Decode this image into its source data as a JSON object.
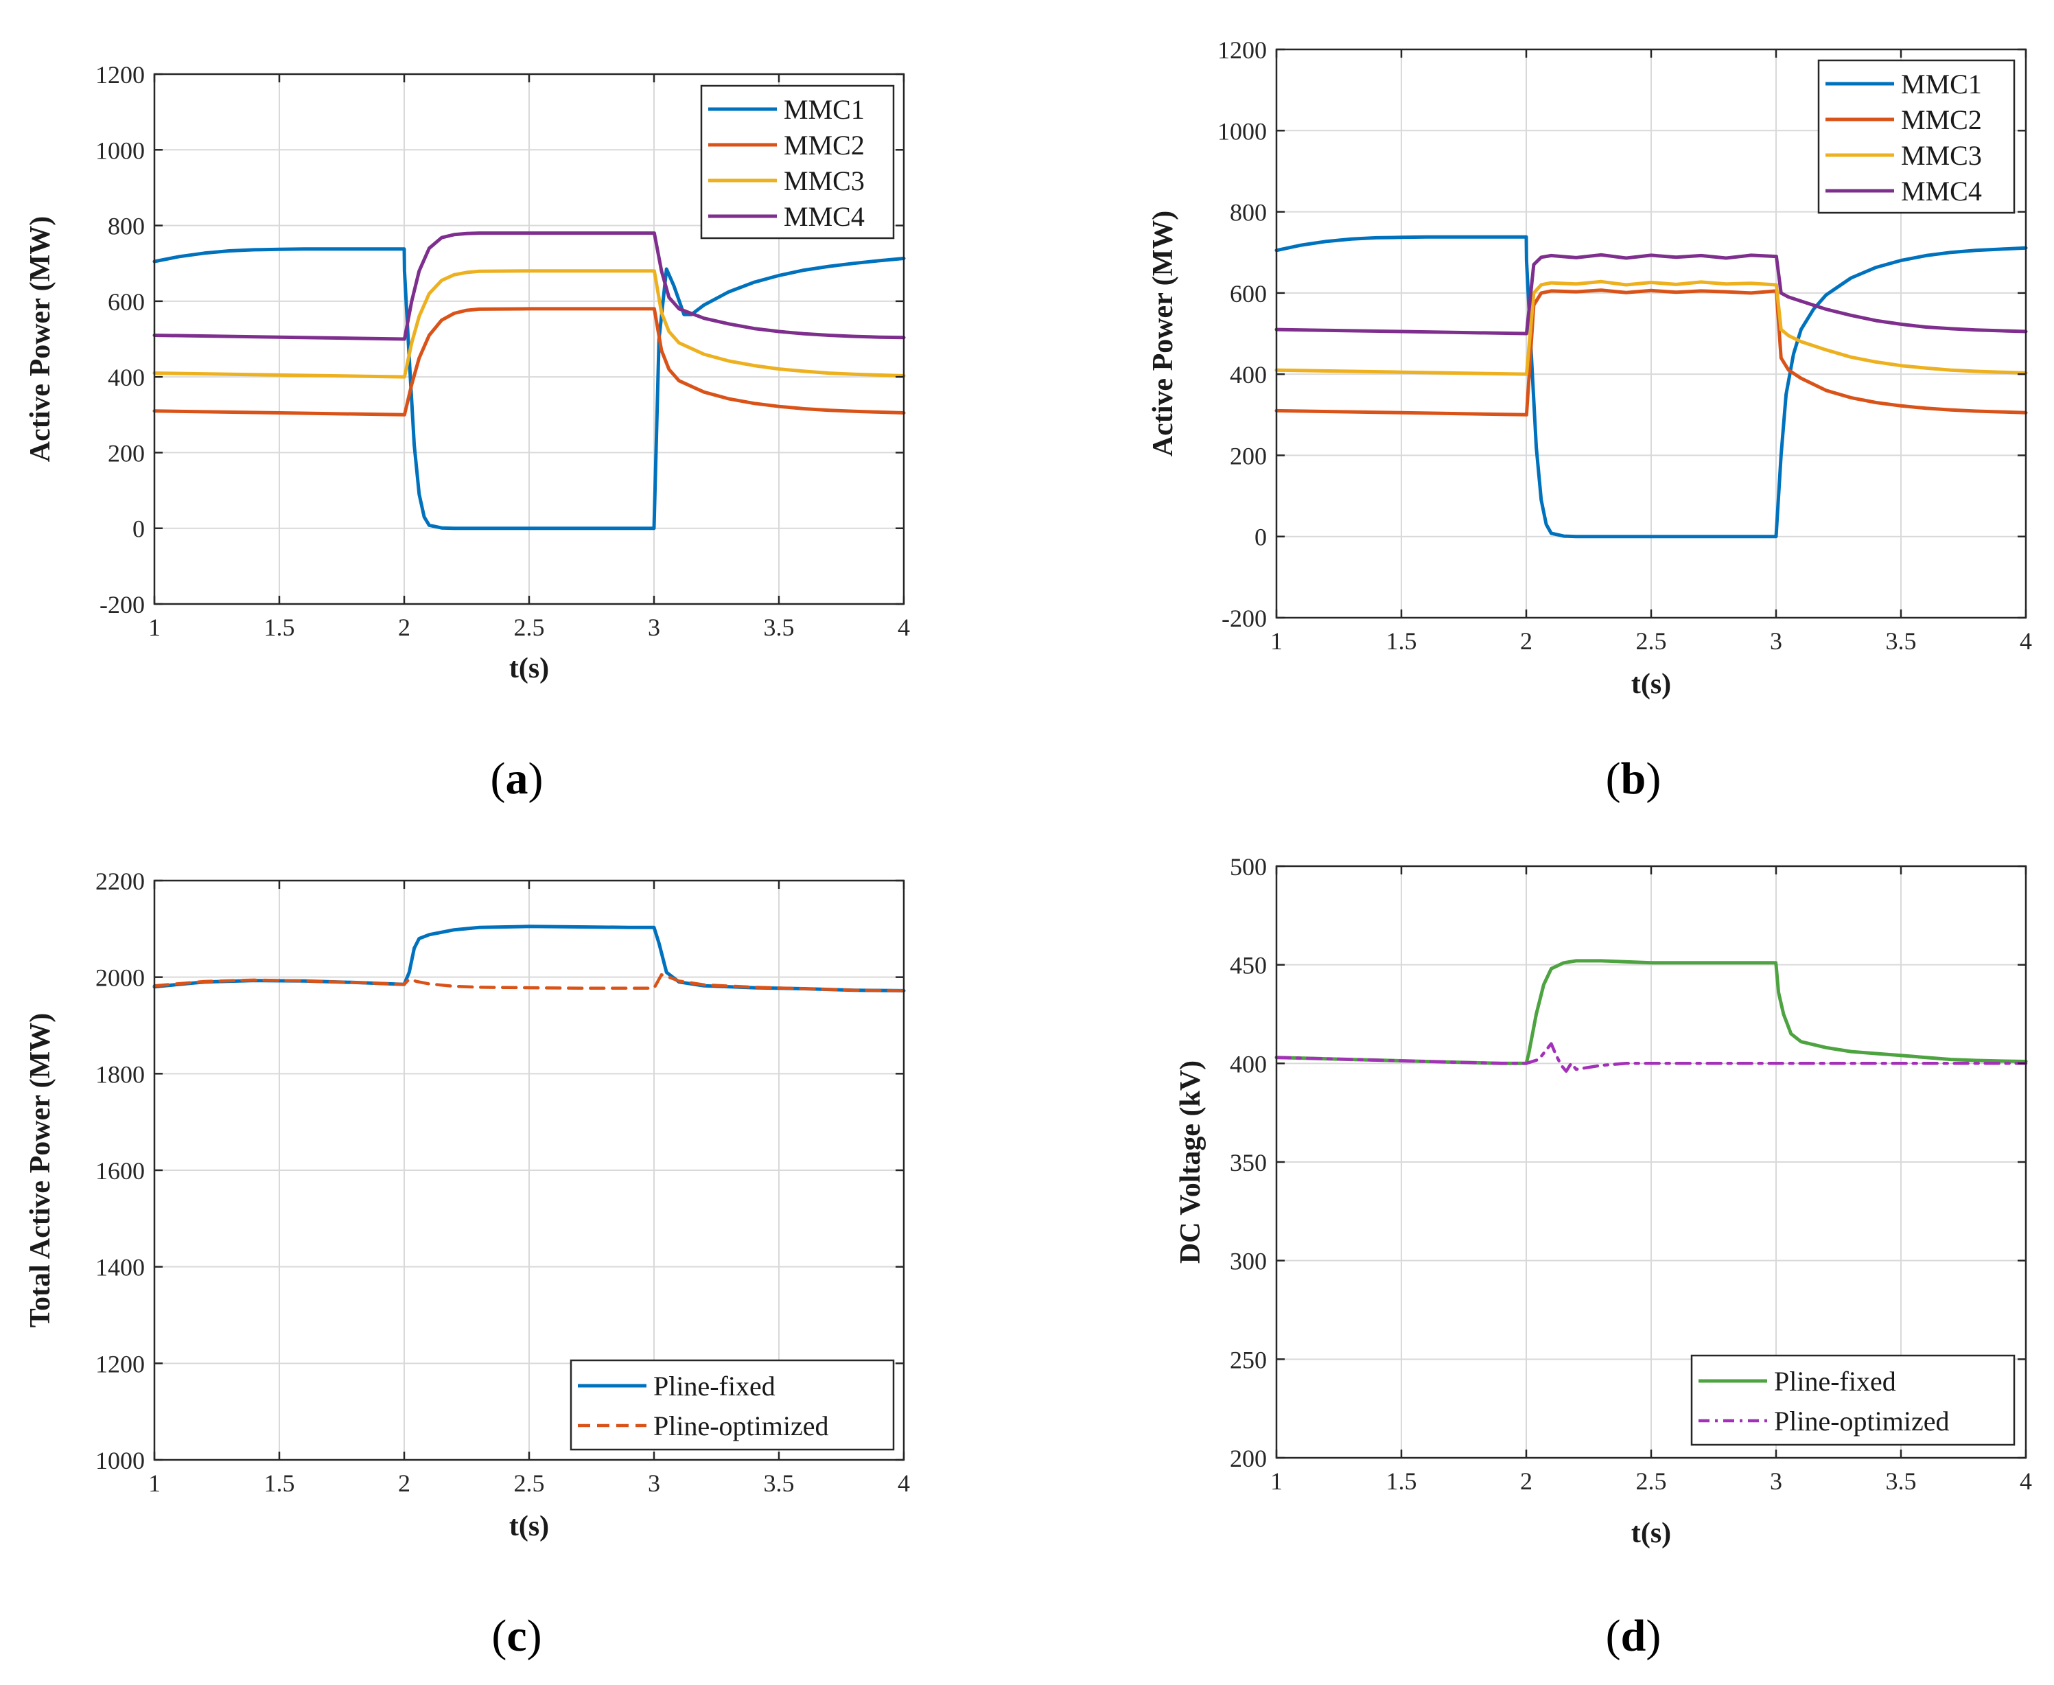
{
  "chart_data": [
    {
      "id": "a",
      "type": "line",
      "caption": "a",
      "xlabel": "t(s)",
      "ylabel": "Active Power (MW)",
      "xlim": [
        1,
        4
      ],
      "ylim": [
        -200,
        1200
      ],
      "xticks": [
        1,
        1.5,
        2,
        2.5,
        3,
        3.5,
        4
      ],
      "xtick_labels": [
        "1",
        "1.5",
        "2",
        "2.5",
        "3",
        "3.5",
        "4"
      ],
      "yticks": [
        -200,
        0,
        200,
        400,
        600,
        800,
        1000,
        1200
      ],
      "ytick_labels": [
        "-200",
        "0",
        "200",
        "400",
        "600",
        "800",
        "1000",
        "1200"
      ],
      "grid": true,
      "legend_position": "top-right",
      "series": [
        {
          "name": "MMC1",
          "color": "#0072BD",
          "style": "solid",
          "x": [
            1,
            1.1,
            1.2,
            1.3,
            1.4,
            1.5,
            1.6,
            1.7,
            1.8,
            1.9,
            2.0,
            2.001,
            2.02,
            2.04,
            2.06,
            2.08,
            2.1,
            2.15,
            2.2,
            2.5,
            2.8,
            2.999,
            3.0,
            3.02,
            3.05,
            3.08,
            3.12,
            3.15,
            3.2,
            3.3,
            3.4,
            3.5,
            3.6,
            3.7,
            3.8,
            3.9,
            4.0
          ],
          "y": [
            705,
            718,
            727,
            733,
            736,
            737,
            738,
            738,
            738,
            738,
            738,
            680,
            450,
            220,
            90,
            30,
            8,
            1,
            0,
            0,
            0,
            0,
            0,
            500,
            685,
            640,
            565,
            565,
            590,
            625,
            650,
            668,
            682,
            692,
            700,
            707,
            713
          ]
        },
        {
          "name": "MMC2",
          "color": "#D95319",
          "style": "solid",
          "x": [
            1,
            1.5,
            2.0,
            2.001,
            2.03,
            2.06,
            2.1,
            2.15,
            2.2,
            2.25,
            2.3,
            2.5,
            2.8,
            3.0,
            3.001,
            3.03,
            3.06,
            3.1,
            3.2,
            3.3,
            3.4,
            3.5,
            3.6,
            3.7,
            3.8,
            3.9,
            4.0
          ],
          "y": [
            310,
            305,
            300,
            300,
            380,
            450,
            510,
            550,
            568,
            576,
            579,
            580,
            580,
            580,
            580,
            470,
            420,
            390,
            360,
            342,
            330,
            322,
            316,
            312,
            309,
            307,
            305
          ]
        },
        {
          "name": "MMC3",
          "color": "#EDB120",
          "style": "solid",
          "x": [
            1,
            1.5,
            2.0,
            2.001,
            2.03,
            2.06,
            2.1,
            2.15,
            2.2,
            2.25,
            2.3,
            2.5,
            2.8,
            3.0,
            3.001,
            3.03,
            3.06,
            3.1,
            3.2,
            3.3,
            3.4,
            3.5,
            3.6,
            3.7,
            3.8,
            3.9,
            4.0
          ],
          "y": [
            410,
            405,
            400,
            400,
            490,
            560,
            620,
            655,
            670,
            676,
            679,
            680,
            680,
            680,
            680,
            570,
            520,
            490,
            460,
            442,
            430,
            421,
            415,
            410,
            407,
            405,
            403
          ]
        },
        {
          "name": "MMC4",
          "color": "#7E2F8E",
          "style": "solid",
          "x": [
            1,
            1.5,
            2.0,
            2.001,
            2.03,
            2.06,
            2.1,
            2.15,
            2.2,
            2.25,
            2.3,
            2.5,
            2.8,
            3.0,
            3.001,
            3.03,
            3.06,
            3.1,
            3.2,
            3.3,
            3.4,
            3.5,
            3.6,
            3.7,
            3.8,
            3.9,
            4.0
          ],
          "y": [
            510,
            505,
            500,
            500,
            600,
            680,
            740,
            768,
            776,
            779,
            780,
            780,
            780,
            780,
            780,
            680,
            610,
            580,
            555,
            540,
            528,
            520,
            514,
            510,
            507,
            505,
            504
          ]
        }
      ]
    },
    {
      "id": "b",
      "type": "line",
      "caption": "b",
      "xlabel": "t(s)",
      "ylabel": "Active Power (MW)",
      "xlim": [
        1,
        4
      ],
      "ylim": [
        -200,
        1200
      ],
      "xticks": [
        1,
        1.5,
        2,
        2.5,
        3,
        3.5,
        4
      ],
      "xtick_labels": [
        "1",
        "1.5",
        "2",
        "2.5",
        "3",
        "3.5",
        "4"
      ],
      "yticks": [
        -200,
        0,
        200,
        400,
        600,
        800,
        1000,
        1200
      ],
      "ytick_labels": [
        "-200",
        "0",
        "200",
        "400",
        "600",
        "800",
        "1000",
        "1200"
      ],
      "grid": true,
      "legend_position": "top-right",
      "series": [
        {
          "name": "MMC1",
          "color": "#0072BD",
          "style": "solid",
          "x": [
            1,
            1.1,
            1.2,
            1.3,
            1.4,
            1.5,
            1.6,
            1.7,
            1.8,
            1.9,
            2.0,
            2.001,
            2.02,
            2.04,
            2.06,
            2.08,
            2.1,
            2.15,
            2.2,
            2.5,
            2.8,
            2.999,
            3.0,
            3.02,
            3.04,
            3.07,
            3.1,
            3.15,
            3.2,
            3.3,
            3.4,
            3.5,
            3.6,
            3.7,
            3.8,
            3.9,
            4.0
          ],
          "y": [
            705,
            718,
            727,
            733,
            736,
            737,
            738,
            738,
            738,
            738,
            738,
            680,
            450,
            220,
            90,
            30,
            8,
            1,
            0,
            0,
            0,
            0,
            0,
            200,
            350,
            450,
            510,
            560,
            595,
            637,
            663,
            680,
            692,
            700,
            705,
            708,
            711
          ]
        },
        {
          "name": "MMC2",
          "color": "#D95319",
          "style": "solid",
          "x": [
            1,
            1.5,
            2.0,
            2.001,
            2.03,
            2.06,
            2.1,
            2.2,
            2.3,
            2.4,
            2.5,
            2.6,
            2.7,
            2.8,
            2.9,
            3.0,
            3.001,
            3.02,
            3.05,
            3.1,
            3.2,
            3.3,
            3.4,
            3.5,
            3.6,
            3.7,
            3.8,
            3.9,
            4.0
          ],
          "y": [
            310,
            305,
            300,
            300,
            570,
            600,
            605,
            603,
            607,
            601,
            606,
            602,
            605,
            603,
            600,
            605,
            605,
            440,
            410,
            390,
            360,
            342,
            330,
            322,
            316,
            312,
            309,
            307,
            305
          ]
        },
        {
          "name": "MMC3",
          "color": "#EDB120",
          "style": "solid",
          "x": [
            1,
            1.5,
            2.0,
            2.001,
            2.03,
            2.06,
            2.1,
            2.2,
            2.3,
            2.4,
            2.5,
            2.6,
            2.7,
            2.8,
            2.9,
            3.0,
            3.001,
            3.02,
            3.05,
            3.1,
            3.2,
            3.3,
            3.4,
            3.5,
            3.6,
            3.7,
            3.8,
            3.9,
            4.0
          ],
          "y": [
            410,
            405,
            400,
            400,
            600,
            620,
            625,
            622,
            628,
            620,
            626,
            621,
            627,
            622,
            624,
            620,
            620,
            510,
            495,
            480,
            460,
            442,
            430,
            421,
            415,
            410,
            407,
            405,
            403
          ]
        },
        {
          "name": "MMC4",
          "color": "#7E2F8E",
          "style": "solid",
          "x": [
            1,
            1.5,
            2.0,
            2.001,
            2.03,
            2.06,
            2.1,
            2.2,
            2.3,
            2.4,
            2.5,
            2.6,
            2.7,
            2.8,
            2.9,
            3.0,
            3.001,
            3.02,
            3.05,
            3.1,
            3.2,
            3.3,
            3.4,
            3.5,
            3.6,
            3.7,
            3.8,
            3.9,
            4.0
          ],
          "y": [
            510,
            505,
            500,
            500,
            670,
            688,
            692,
            687,
            694,
            686,
            693,
            688,
            692,
            686,
            693,
            690,
            690,
            600,
            590,
            580,
            560,
            545,
            532,
            523,
            516,
            512,
            509,
            507,
            505
          ]
        }
      ]
    },
    {
      "id": "c",
      "type": "line",
      "caption": "c",
      "xlabel": "t(s)",
      "ylabel": "Total Active Power (MW)",
      "xlim": [
        1,
        4
      ],
      "ylim": [
        1000,
        2200
      ],
      "xticks": [
        1,
        1.5,
        2,
        2.5,
        3,
        3.5,
        4
      ],
      "xtick_labels": [
        "1",
        "1.5",
        "2",
        "2.5",
        "3",
        "3.5",
        "4"
      ],
      "yticks": [
        1000,
        1200,
        1400,
        1600,
        1800,
        2000,
        2200
      ],
      "ytick_labels": [
        "1000",
        "1200",
        "1400",
        "1600",
        "1800",
        "2000",
        "2200"
      ],
      "grid": true,
      "legend_position": "bottom-right",
      "series": [
        {
          "name": "Pline-fixed",
          "color": "#0072BD",
          "style": "solid",
          "x": [
            1,
            1.2,
            1.4,
            1.6,
            1.8,
            2.0,
            2.02,
            2.04,
            2.06,
            2.1,
            2.2,
            2.3,
            2.5,
            2.7,
            2.9,
            3.0,
            3.02,
            3.05,
            3.1,
            3.2,
            3.4,
            3.6,
            3.8,
            4.0
          ],
          "y": [
            1980,
            1990,
            1993,
            1992,
            1989,
            1985,
            2010,
            2060,
            2080,
            2088,
            2098,
            2103,
            2105,
            2104,
            2103,
            2103,
            2070,
            2010,
            1990,
            1982,
            1978,
            1976,
            1973,
            1972
          ]
        },
        {
          "name": "Pline-optimized",
          "color": "#D95319",
          "style": "dashed",
          "x": [
            1,
            1.2,
            1.4,
            1.6,
            1.8,
            2.0,
            2.02,
            2.05,
            2.1,
            2.2,
            2.3,
            2.5,
            2.7,
            2.9,
            3.0,
            3.03,
            3.06,
            3.1,
            3.2,
            3.4,
            3.6,
            3.8,
            4.0
          ],
          "y": [
            1982,
            1991,
            1994,
            1992,
            1989,
            1985,
            1996,
            1991,
            1986,
            1981,
            1979,
            1978,
            1977,
            1977,
            1977,
            2005,
            2000,
            1992,
            1984,
            1979,
            1976,
            1973,
            1972
          ]
        }
      ]
    },
    {
      "id": "d",
      "type": "line",
      "caption": "d",
      "xlabel": "t(s)",
      "ylabel": "DC Voltage (kV)",
      "xlim": [
        1,
        4
      ],
      "ylim": [
        200,
        500
      ],
      "xticks": [
        1,
        1.5,
        2,
        2.5,
        3,
        3.5,
        4
      ],
      "xtick_labels": [
        "1",
        "1.5",
        "2",
        "2.5",
        "3",
        "3.5",
        "4"
      ],
      "yticks": [
        200,
        250,
        300,
        350,
        400,
        450,
        500
      ],
      "ytick_labels": [
        "200",
        "250",
        "300",
        "350",
        "400",
        "450",
        "500"
      ],
      "grid": true,
      "legend_position": "bottom-right",
      "series": [
        {
          "name": "Pline-fixed",
          "color": "#4DA340",
          "style": "solid",
          "x": [
            1,
            1.3,
            1.6,
            1.9,
            2.0,
            2.01,
            2.04,
            2.07,
            2.1,
            2.15,
            2.2,
            2.3,
            2.5,
            2.7,
            2.9,
            2.999,
            3.0,
            3.01,
            3.03,
            3.06,
            3.1,
            3.2,
            3.3,
            3.4,
            3.5,
            3.6,
            3.7,
            3.8,
            3.9,
            4.0
          ],
          "y": [
            403,
            402,
            401,
            400,
            400,
            405,
            425,
            440,
            448,
            451,
            452,
            452,
            451,
            451,
            451,
            451,
            450,
            436,
            425,
            415,
            411,
            408,
            406,
            405,
            404,
            403,
            402,
            401.5,
            401.2,
            401
          ]
        },
        {
          "name": "Pline-optimized",
          "color": "#A330B8",
          "style": "dashdot",
          "x": [
            1,
            1.3,
            1.6,
            1.9,
            2.0,
            2.05,
            2.1,
            2.12,
            2.14,
            2.16,
            2.18,
            2.2,
            2.25,
            2.3,
            2.4,
            2.6,
            2.8,
            3.0,
            3.2,
            3.5,
            4.0
          ],
          "y": [
            403,
            402,
            401,
            400,
            400,
            402,
            410,
            404,
            399,
            396,
            400,
            397,
            398,
            399,
            400,
            400,
            400,
            400,
            400,
            400,
            400
          ]
        }
      ]
    }
  ]
}
